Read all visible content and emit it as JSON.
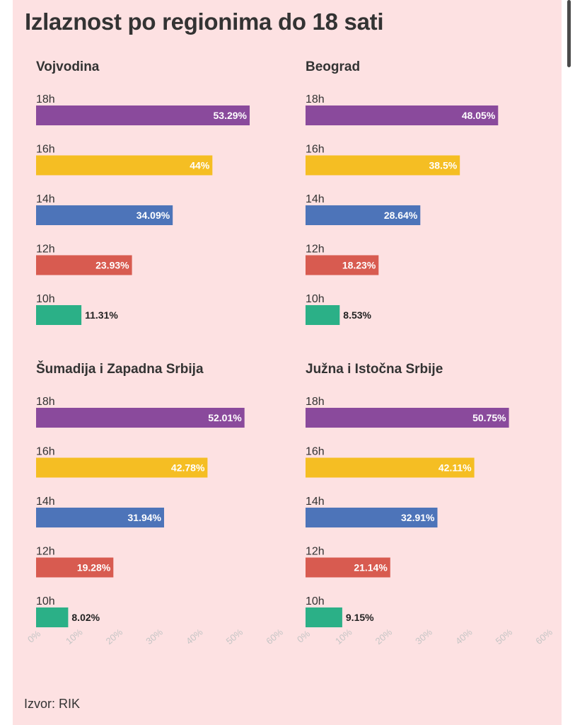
{
  "title": "Izlaznost po regionima do 18 sati",
  "source": "Izvor: RIK",
  "colors": {
    "background": "#fde1e2",
    "18h": "#8a4a9c",
    "16h": "#f5be23",
    "14h": "#4d74b9",
    "12h": "#d85b50",
    "10h": "#2bb087"
  },
  "chart_data": [
    {
      "type": "bar",
      "orientation": "horizontal",
      "title": "Vojvodina",
      "categories": [
        "18h",
        "16h",
        "14h",
        "12h",
        "10h"
      ],
      "values": [
        53.29,
        44,
        34.09,
        23.93,
        11.31
      ],
      "value_labels": [
        "53.29%",
        "44%",
        "34.09%",
        "23.93%",
        "11.31%"
      ],
      "xlim": [
        0,
        60
      ]
    },
    {
      "type": "bar",
      "orientation": "horizontal",
      "title": "Beograd",
      "categories": [
        "18h",
        "16h",
        "14h",
        "12h",
        "10h"
      ],
      "values": [
        48.05,
        38.5,
        28.64,
        18.23,
        8.53
      ],
      "value_labels": [
        "48.05%",
        "38.5%",
        "28.64%",
        "18.23%",
        "8.53%"
      ],
      "xlim": [
        0,
        60
      ]
    },
    {
      "type": "bar",
      "orientation": "horizontal",
      "title": "Šumadija i Zapadna Srbija",
      "categories": [
        "18h",
        "16h",
        "14h",
        "12h",
        "10h"
      ],
      "values": [
        52.01,
        42.78,
        31.94,
        19.28,
        8.02
      ],
      "value_labels": [
        "52.01%",
        "42.78%",
        "31.94%",
        "19.28%",
        "8.02%"
      ],
      "xlim": [
        0,
        60
      ],
      "xticks": [
        "0%",
        "10%",
        "20%",
        "30%",
        "40%",
        "50%",
        "60%"
      ]
    },
    {
      "type": "bar",
      "orientation": "horizontal",
      "title": "Južna i Istočna Srbije",
      "categories": [
        "18h",
        "16h",
        "14h",
        "12h",
        "10h"
      ],
      "values": [
        50.75,
        42.11,
        32.91,
        21.14,
        9.15
      ],
      "value_labels": [
        "50.75%",
        "42.11%",
        "32.91%",
        "21.14%",
        "9.15%"
      ],
      "xlim": [
        0,
        60
      ],
      "xticks": [
        "0%",
        "10%",
        "20%",
        "30%",
        "40%",
        "50%",
        "60%"
      ]
    }
  ]
}
